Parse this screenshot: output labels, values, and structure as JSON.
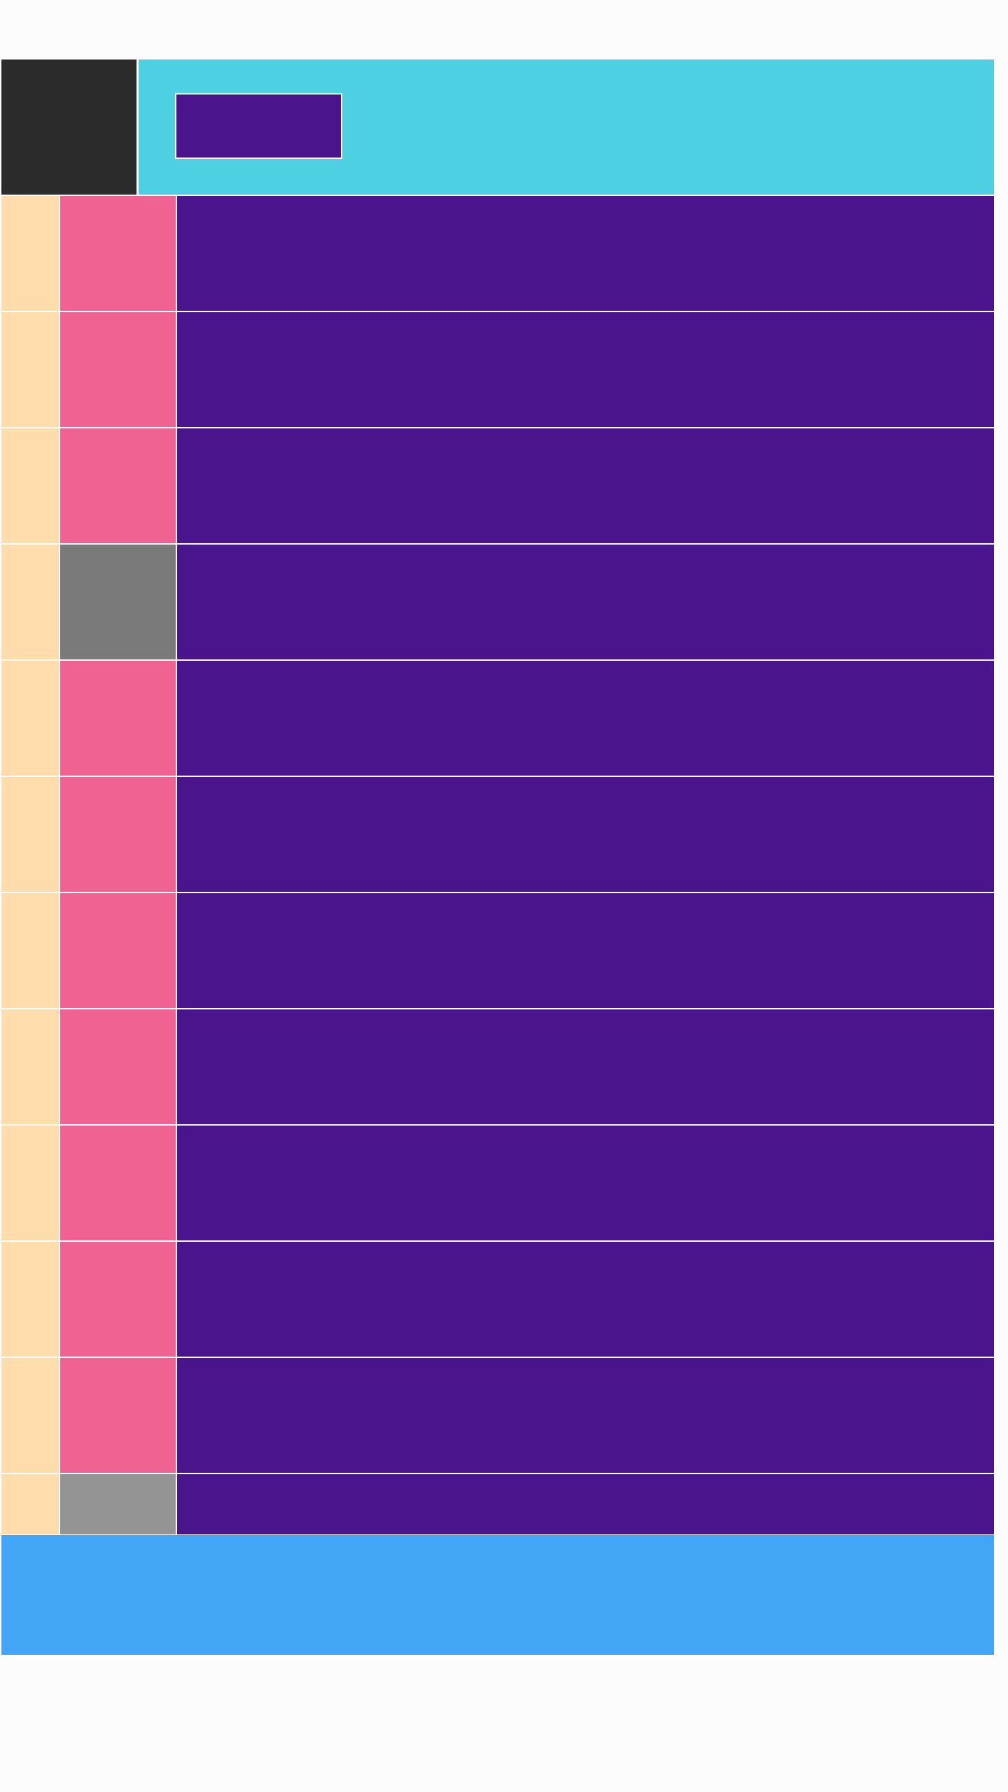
{
  "colors": {
    "page_background": "#fcfcfc",
    "header_logo": "#2b2b2b",
    "header_bar": "#4dd0e1",
    "header_button": "#4a148c",
    "row_leading": "#ffdcab",
    "row_icon": "#f06292",
    "row_icon_disabled": "#7a7a7a",
    "row_icon_partial": "#949494",
    "row_content": "#4a148c",
    "footer": "#42a5f5"
  },
  "header": {
    "button_label": ""
  },
  "rows": [
    {
      "state": "normal",
      "text": ""
    },
    {
      "state": "normal",
      "text": ""
    },
    {
      "state": "normal",
      "text": ""
    },
    {
      "state": "disabled",
      "text": ""
    },
    {
      "state": "normal",
      "text": ""
    },
    {
      "state": "normal",
      "text": ""
    },
    {
      "state": "normal",
      "text": ""
    },
    {
      "state": "normal",
      "text": ""
    },
    {
      "state": "normal",
      "text": ""
    },
    {
      "state": "normal",
      "text": ""
    },
    {
      "state": "normal",
      "text": ""
    },
    {
      "state": "partial",
      "text": ""
    }
  ],
  "footer": {
    "label": ""
  }
}
